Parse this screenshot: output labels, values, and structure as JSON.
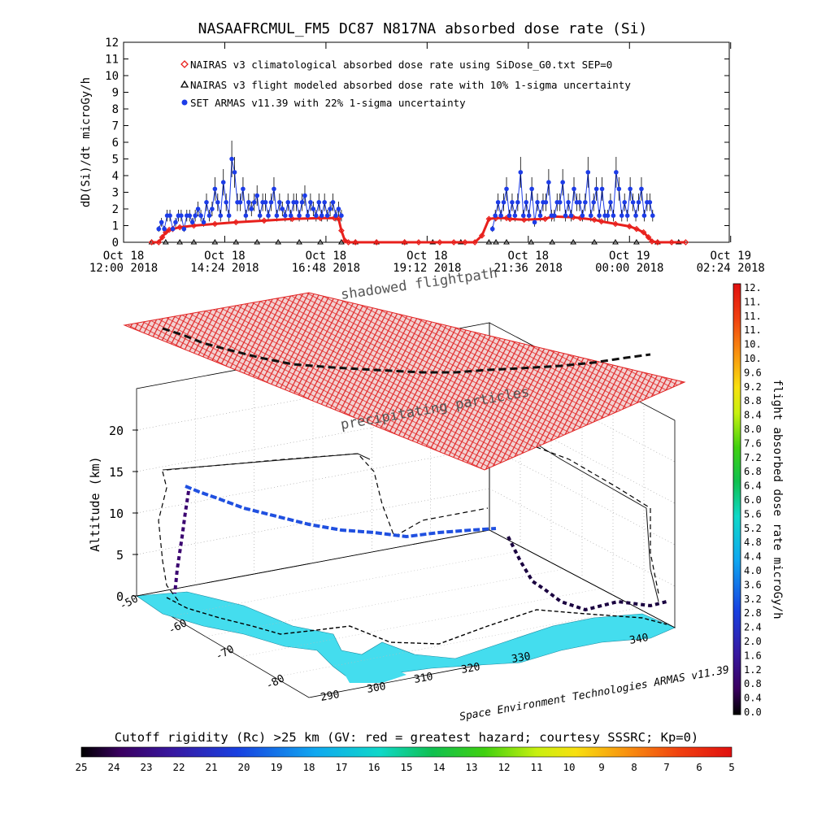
{
  "title": "NASAAFRCMUL_FM5 DC87 N817NA absorbed dose rate (Si)",
  "credit": "Space Environment Technologies ARMAS v11.39",
  "colors": {
    "climatological": "#e8201c",
    "modeled": "#000000",
    "armas": "#1c3ce8",
    "precip_mesh": "#e01818",
    "ground": "#44ddee"
  },
  "chart_data": [
    {
      "type": "scatter",
      "title": "NASAAFRCMUL_FM5 DC87 N817NA absorbed dose rate (Si)",
      "ylabel": "dD(Si)/dt microGy/h",
      "ylim": [
        0,
        12
      ],
      "xlim": [
        0,
        862
      ],
      "y_ticks": [
        "0",
        "1",
        "2",
        "3",
        "4",
        "5",
        "6",
        "7",
        "8",
        "9",
        "10",
        "11",
        "12"
      ],
      "x_ticks": [
        {
          "t": 0,
          "line1": "Oct 18",
          "line2": "12:00 2018"
        },
        {
          "t": 144,
          "line1": "Oct 18",
          "line2": "14:24 2018"
        },
        {
          "t": 288,
          "line1": "Oct 18",
          "line2": "16:48 2018"
        },
        {
          "t": 432,
          "line1": "Oct 18",
          "line2": "19:12 2018"
        },
        {
          "t": 576,
          "line1": "Oct 18",
          "line2": "21:36 2018"
        },
        {
          "t": 720,
          "line1": "Oct 19",
          "line2": "00:00 2018"
        },
        {
          "t": 864,
          "line1": "Oct 19",
          "line2": "02:24 2018"
        }
      ],
      "series": [
        {
          "name": "NAIRAS v3 climatological absorbed dose rate using SiDose_G0.txt SEP=0",
          "marker": "diamond",
          "x": [
            40,
            50,
            55,
            60,
            65,
            70,
            80,
            100,
            130,
            160,
            200,
            240,
            280,
            300,
            306,
            310,
            315,
            320,
            330,
            360,
            400,
            420,
            450,
            470,
            486,
            500,
            510,
            520,
            530,
            545,
            550,
            570,
            600,
            610,
            640,
            650,
            670,
            680,
            700,
            720,
            730,
            740,
            747,
            752,
            760,
            780,
            800
          ],
          "y": [
            0,
            0,
            0.3,
            0.6,
            0.75,
            0.8,
            0.9,
            1.0,
            1.1,
            1.2,
            1.3,
            1.4,
            1.45,
            1.45,
            1.4,
            0.7,
            0.1,
            0,
            0,
            0,
            0,
            0,
            0,
            0,
            0,
            0,
            0.4,
            1.4,
            1.45,
            1.45,
            1.4,
            1.35,
            1.4,
            1.55,
            1.5,
            1.45,
            1.35,
            1.25,
            1.1,
            0.95,
            0.8,
            0.6,
            0.3,
            0.05,
            0,
            0,
            0
          ]
        },
        {
          "name": "NAIRAS v3 flight modeled absorbed dose rate with 10% 1-sigma uncertainty",
          "marker": "triangle",
          "x": [
            40,
            60,
            80,
            100,
            130,
            160,
            190,
            220,
            250,
            280,
            310,
            330,
            360,
            400,
            440,
            480,
            520,
            530,
            545,
            580,
            610,
            640,
            670,
            700,
            730,
            760,
            790
          ],
          "y": [
            0,
            0,
            0,
            0,
            0,
            0,
            0,
            0,
            0,
            0,
            0,
            0,
            0,
            0,
            0,
            0,
            0,
            0,
            0,
            0,
            0,
            0,
            0,
            0,
            0,
            0,
            0
          ]
        },
        {
          "name": "SET ARMAS v11.39 with 22% 1-sigma uncertainty",
          "marker": "circle",
          "x": [
            50,
            54,
            58,
            62,
            66,
            70,
            74,
            78,
            82,
            86,
            90,
            94,
            98,
            102,
            106,
            110,
            114,
            118,
            122,
            126,
            130,
            134,
            138,
            142,
            146,
            150,
            154,
            158,
            162,
            166,
            170,
            174,
            178,
            182,
            186,
            190,
            194,
            198,
            202,
            206,
            210,
            214,
            218,
            222,
            226,
            230,
            234,
            238,
            242,
            246,
            250,
            254,
            258,
            262,
            266,
            270,
            274,
            278,
            282,
            286,
            290,
            294,
            298,
            302,
            306,
            310,
            525,
            529,
            533,
            537,
            541,
            545,
            549,
            553,
            557,
            561,
            565,
            569,
            573,
            577,
            581,
            585,
            589,
            593,
            597,
            601,
            605,
            609,
            613,
            617,
            621,
            625,
            629,
            633,
            637,
            641,
            645,
            649,
            653,
            657,
            661,
            665,
            669,
            673,
            677,
            681,
            685,
            689,
            693,
            697,
            701,
            705,
            709,
            713,
            717,
            721,
            725,
            729,
            733,
            737,
            741,
            745,
            749,
            753
          ],
          "y": [
            0.8,
            1.2,
            0.8,
            1.6,
            1.6,
            0.8,
            1.2,
            1.6,
            1.6,
            0.8,
            1.6,
            1.6,
            1.2,
            1.6,
            2.0,
            1.6,
            1.2,
            2.4,
            1.6,
            2.0,
            3.2,
            2.4,
            1.6,
            3.6,
            2.4,
            1.6,
            5.0,
            4.2,
            2.4,
            2.4,
            3.2,
            1.6,
            2.4,
            2.0,
            2.4,
            2.8,
            1.6,
            2.4,
            2.4,
            1.6,
            2.4,
            3.2,
            1.6,
            2.4,
            2.0,
            1.6,
            2.4,
            1.6,
            2.4,
            2.4,
            1.6,
            2.4,
            2.8,
            1.6,
            2.4,
            2.0,
            1.6,
            2.4,
            1.6,
            2.4,
            1.6,
            2.0,
            2.4,
            1.6,
            2.0,
            1.6,
            0.8,
            1.6,
            2.4,
            1.6,
            2.4,
            3.2,
            1.6,
            2.4,
            1.6,
            2.4,
            4.2,
            1.6,
            2.4,
            1.6,
            3.2,
            1.2,
            2.4,
            1.6,
            2.4,
            2.4,
            3.6,
            1.6,
            1.6,
            2.4,
            2.4,
            3.6,
            1.6,
            2.4,
            1.6,
            3.2,
            2.4,
            2.4,
            1.6,
            2.4,
            4.2,
            1.6,
            2.4,
            3.2,
            1.6,
            3.2,
            1.6,
            1.6,
            2.4,
            1.6,
            4.2,
            3.2,
            1.6,
            2.4,
            1.6,
            3.2,
            2.4,
            1.6,
            2.4,
            3.2,
            1.6,
            2.4,
            2.4,
            1.6
          ]
        }
      ]
    },
    {
      "type": "scatter",
      "ylabel": "Altitude (km)",
      "z_ticks": [
        "0",
        "5",
        "10",
        "15",
        "20"
      ],
      "lat_ticks": [
        "-50",
        "-60",
        "-70",
        "-80"
      ],
      "lon_ticks": [
        "290",
        "300",
        "310",
        "320",
        "330",
        "340"
      ],
      "labels": {
        "shadow": "shadowed flightpath",
        "precip": "precipitating particles"
      }
    },
    {
      "type": "heatmap",
      "colorbar_label": "flight absorbed dose rate microGy/h",
      "colorbar_ticks": [
        "12.",
        "11.",
        "11.",
        "11.",
        "10.",
        "10.",
        "9.6",
        "9.2",
        "8.8",
        "8.4",
        "8.0",
        "7.6",
        "7.2",
        "6.8",
        "6.4",
        "6.0",
        "5.6",
        "5.2",
        "4.8",
        "4.4",
        "4.0",
        "3.6",
        "3.2",
        "2.8",
        "2.4",
        "2.0",
        "1.6",
        "1.2",
        "0.8",
        "0.4",
        "0.0"
      ]
    },
    {
      "type": "heatmap",
      "title": "Cutoff rigidity (Rc) >25 km (GV: red = greatest hazard; courtesy SSSRC; Kp=0)",
      "colorbar_ticks": [
        "25",
        "24",
        "23",
        "22",
        "21",
        "20",
        "19",
        "18",
        "17",
        "16",
        "15",
        "14",
        "13",
        "12",
        "11",
        "10",
        "9",
        "8",
        "7",
        "6",
        "5"
      ]
    }
  ]
}
